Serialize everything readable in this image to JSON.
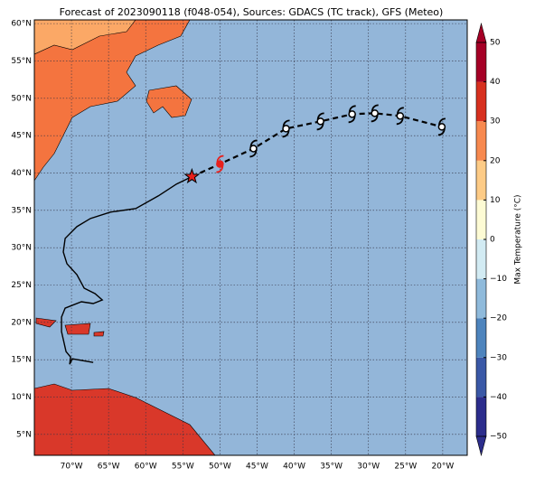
{
  "map": {
    "title": "Forecast of 2023090118 (f048-054), Sources: GDACS (TC track), GFS (Meteo)",
    "lonlim": [
      -75,
      -16.7
    ],
    "latlim": [
      2.2,
      60.5
    ],
    "lonticks": [
      {
        "value": -70,
        "label": "70°W"
      },
      {
        "value": -65,
        "label": "65°W"
      },
      {
        "value": -60,
        "label": "60°W"
      },
      {
        "value": -55,
        "label": "55°W"
      },
      {
        "value": -50,
        "label": "50°W"
      },
      {
        "value": -45,
        "label": "45°W"
      },
      {
        "value": -40,
        "label": "40°W"
      },
      {
        "value": -35,
        "label": "35°W"
      },
      {
        "value": -30,
        "label": "30°W"
      },
      {
        "value": -25,
        "label": "25°W"
      },
      {
        "value": -20,
        "label": "20°W"
      }
    ],
    "latticks": [
      {
        "value": 5,
        "label": "5°N"
      },
      {
        "value": 10,
        "label": "10°N"
      },
      {
        "value": 15,
        "label": "15°N"
      },
      {
        "value": 20,
        "label": "20°N"
      },
      {
        "value": 25,
        "label": "25°N"
      },
      {
        "value": 30,
        "label": "30°N"
      },
      {
        "value": 35,
        "label": "35°N"
      },
      {
        "value": 40,
        "label": "40°N"
      },
      {
        "value": 45,
        "label": "45°N"
      },
      {
        "value": 50,
        "label": "50°N"
      },
      {
        "value": 55,
        "label": "55°N"
      },
      {
        "value": 60,
        "label": "60°N"
      }
    ],
    "past_track": {
      "lon": [
        -67.07,
        -69.88,
        -70.24,
        -70.12,
        -70.73,
        -71.34,
        -71.34,
        -70.85,
        -68.66,
        -67.07,
        -65.85,
        -66.83,
        -68.29,
        -69.27,
        -70.61,
        -71.1,
        -70.85,
        -69.27,
        -67.44,
        -64.76,
        -61.34,
        -58.29,
        -55.85,
        -53.78
      ],
      "lat": [
        14.64,
        15.12,
        14.39,
        15.36,
        16.09,
        18.76,
        20.7,
        21.91,
        22.76,
        22.52,
        23.0,
        23.85,
        24.58,
        26.39,
        27.85,
        29.42,
        31.24,
        32.82,
        33.91,
        34.76,
        35.24,
        36.94,
        38.52,
        39.52
      ]
    },
    "current": {
      "lon": -53.78,
      "lat": 39.52
    },
    "analysis": {
      "lon": -50.0,
      "lat": 41.2
    },
    "forecast": {
      "lon": [
        -45.49,
        -41.1,
        -36.46,
        -32.2,
        -29.15,
        -25.73,
        -20.12
      ],
      "lat": [
        43.27,
        45.94,
        46.91,
        47.88,
        48.0,
        47.64,
        46.18
      ]
    },
    "colorbar": {
      "label": "Max Temperature (°C)",
      "lim": [
        -50,
        50
      ],
      "ticks": [
        {
          "value": -50,
          "label": "−50"
        },
        {
          "value": -40,
          "label": "−40"
        },
        {
          "value": -30,
          "label": "−30"
        },
        {
          "value": -20,
          "label": "−20"
        },
        {
          "value": -10,
          "label": "−10"
        },
        0,
        10,
        20,
        30,
        40,
        50
      ],
      "colors": [
        "#2c2d8c",
        "#3a58a6",
        "#4e84bd",
        "#8fbadb",
        "#d2ebf3",
        "#fdfbd4",
        "#fdcb86",
        "#f7894f",
        "#d7301f",
        "#a50026"
      ]
    }
  }
}
